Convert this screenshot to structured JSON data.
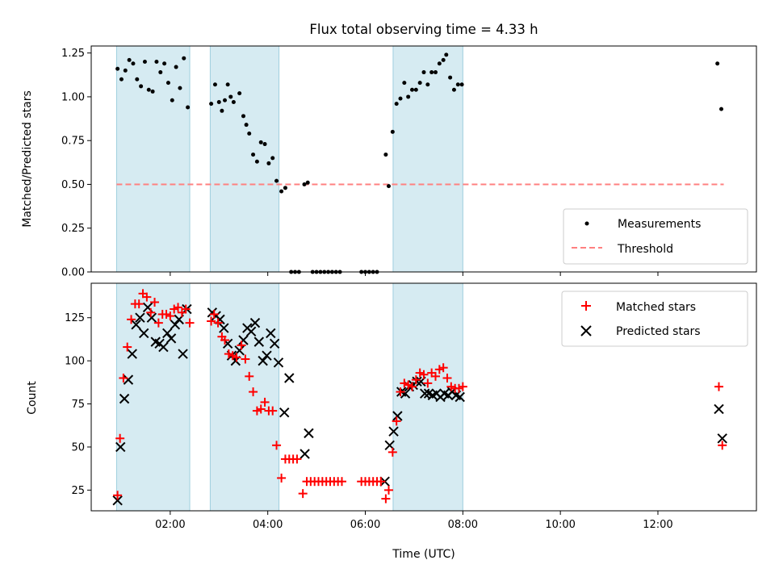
{
  "chart_data": [
    {
      "type": "scatter",
      "title": "Flux total observing time = 4.33 h",
      "xlabel": "",
      "ylabel": "Matched/Predicted stars",
      "xlim": [
        0.38,
        14.02
      ],
      "ylim": [
        0.0,
        1.29
      ],
      "yticks": [
        0.0,
        0.25,
        0.5,
        0.75,
        1.0,
        1.25
      ],
      "ytick_labels": [
        "0.00",
        "0.25",
        "0.50",
        "0.75",
        "1.00",
        "1.25"
      ],
      "xticks": [
        2,
        4,
        6,
        8,
        10,
        12
      ],
      "shaded_intervals": [
        [
          0.9,
          2.4
        ],
        [
          2.82,
          4.23
        ],
        [
          6.57,
          8.0
        ]
      ],
      "threshold": {
        "name": "Threshold",
        "y": 0.5,
        "x_range": [
          0.9,
          13.35
        ],
        "color": "#ff8080"
      },
      "legend": {
        "position": "lower-right",
        "entries": [
          "Measurements",
          "Threshold"
        ]
      },
      "series": [
        {
          "name": "Measurements",
          "marker": "dot",
          "color": "#000000",
          "points": [
            [
              0.92,
              1.16
            ],
            [
              1.0,
              1.1
            ],
            [
              1.08,
              1.15
            ],
            [
              1.16,
              1.21
            ],
            [
              1.24,
              1.19
            ],
            [
              1.32,
              1.1
            ],
            [
              1.4,
              1.06
            ],
            [
              1.48,
              1.2
            ],
            [
              1.56,
              1.04
            ],
            [
              1.64,
              1.03
            ],
            [
              1.72,
              1.2
            ],
            [
              1.8,
              1.14
            ],
            [
              1.88,
              1.19
            ],
            [
              1.96,
              1.08
            ],
            [
              2.04,
              0.98
            ],
            [
              2.12,
              1.17
            ],
            [
              2.2,
              1.05
            ],
            [
              2.28,
              1.22
            ],
            [
              2.36,
              0.94
            ],
            [
              2.84,
              0.96
            ],
            [
              2.92,
              1.07
            ],
            [
              3.0,
              0.97
            ],
            [
              3.06,
              0.92
            ],
            [
              3.12,
              0.98
            ],
            [
              3.18,
              1.07
            ],
            [
              3.24,
              1.0
            ],
            [
              3.3,
              0.97
            ],
            [
              3.42,
              1.02
            ],
            [
              3.5,
              0.89
            ],
            [
              3.56,
              0.84
            ],
            [
              3.62,
              0.79
            ],
            [
              3.7,
              0.67
            ],
            [
              3.78,
              0.63
            ],
            [
              3.86,
              0.74
            ],
            [
              3.94,
              0.73
            ],
            [
              4.02,
              0.62
            ],
            [
              4.1,
              0.65
            ],
            [
              4.18,
              0.52
            ],
            [
              4.28,
              0.46
            ],
            [
              4.36,
              0.48
            ],
            [
              4.48,
              0.0
            ],
            [
              4.56,
              0.0
            ],
            [
              4.64,
              0.0
            ],
            [
              4.75,
              0.5
            ],
            [
              4.82,
              0.51
            ],
            [
              4.92,
              0.0
            ],
            [
              5.0,
              0.0
            ],
            [
              5.08,
              0.0
            ],
            [
              5.16,
              0.0
            ],
            [
              5.24,
              0.0
            ],
            [
              5.32,
              0.0
            ],
            [
              5.4,
              0.0
            ],
            [
              5.48,
              0.0
            ],
            [
              5.92,
              0.0
            ],
            [
              6.0,
              0.0
            ],
            [
              6.08,
              0.0
            ],
            [
              6.16,
              0.0
            ],
            [
              6.24,
              0.0
            ],
            [
              6.42,
              0.67
            ],
            [
              6.48,
              0.49
            ],
            [
              6.56,
              0.8
            ],
            [
              6.64,
              0.96
            ],
            [
              6.72,
              0.99
            ],
            [
              6.8,
              1.08
            ],
            [
              6.88,
              1.0
            ],
            [
              6.96,
              1.04
            ],
            [
              7.04,
              1.04
            ],
            [
              7.12,
              1.08
            ],
            [
              7.2,
              1.14
            ],
            [
              7.28,
              1.07
            ],
            [
              7.36,
              1.14
            ],
            [
              7.44,
              1.14
            ],
            [
              7.52,
              1.19
            ],
            [
              7.6,
              1.21
            ],
            [
              7.66,
              1.24
            ],
            [
              7.74,
              1.11
            ],
            [
              7.82,
              1.04
            ],
            [
              7.9,
              1.07
            ],
            [
              7.98,
              1.07
            ],
            [
              13.22,
              1.19
            ],
            [
              13.3,
              0.93
            ]
          ]
        }
      ]
    },
    {
      "type": "scatter",
      "title": "",
      "xlabel": "Time (UTC)",
      "ylabel": "Count",
      "xlim": [
        0.38,
        14.02
      ],
      "ylim": [
        13.0,
        145.0
      ],
      "yticks": [
        25,
        50,
        75,
        100,
        125
      ],
      "xticks": [
        2,
        4,
        6,
        8,
        10,
        12
      ],
      "xtick_labels": [
        "02:00",
        "04:00",
        "06:00",
        "08:00",
        "10:00",
        "12:00"
      ],
      "shaded_intervals": [
        [
          0.9,
          2.4
        ],
        [
          2.82,
          4.23
        ],
        [
          6.57,
          8.0
        ]
      ],
      "legend": {
        "position": "upper-right",
        "entries": [
          "Matched stars",
          "Predicted stars"
        ]
      },
      "series": [
        {
          "name": "Matched stars",
          "marker": "plus",
          "color": "#ff0000",
          "points": [
            [
              0.92,
              22
            ],
            [
              0.97,
              55
            ],
            [
              1.04,
              90
            ],
            [
              1.12,
              108
            ],
            [
              1.2,
              124
            ],
            [
              1.28,
              133
            ],
            [
              1.36,
              133
            ],
            [
              1.44,
              139
            ],
            [
              1.52,
              137
            ],
            [
              1.6,
              128
            ],
            [
              1.68,
              134
            ],
            [
              1.76,
              122
            ],
            [
              1.84,
              127
            ],
            [
              1.92,
              127
            ],
            [
              2.0,
              126
            ],
            [
              2.08,
              130
            ],
            [
              2.16,
              131
            ],
            [
              2.24,
              128
            ],
            [
              2.32,
              130
            ],
            [
              2.4,
              122
            ],
            [
              2.84,
              123
            ],
            [
              2.9,
              127
            ],
            [
              2.98,
              122
            ],
            [
              3.06,
              114
            ],
            [
              3.12,
              112
            ],
            [
              3.2,
              104
            ],
            [
              3.28,
              103
            ],
            [
              3.36,
              102
            ],
            [
              3.46,
              109
            ],
            [
              3.54,
              101
            ],
            [
              3.62,
              91
            ],
            [
              3.7,
              82
            ],
            [
              3.78,
              71
            ],
            [
              3.86,
              72
            ],
            [
              3.94,
              76
            ],
            [
              4.02,
              71
            ],
            [
              4.1,
              71
            ],
            [
              4.18,
              51
            ],
            [
              4.28,
              32
            ],
            [
              4.36,
              43
            ],
            [
              4.44,
              43
            ],
            [
              4.52,
              43
            ],
            [
              4.6,
              43
            ],
            [
              4.72,
              23
            ],
            [
              4.8,
              30
            ],
            [
              4.88,
              30
            ],
            [
              4.96,
              30
            ],
            [
              5.04,
              30
            ],
            [
              5.12,
              30
            ],
            [
              5.2,
              30
            ],
            [
              5.28,
              30
            ],
            [
              5.36,
              30
            ],
            [
              5.44,
              30
            ],
            [
              5.52,
              30
            ],
            [
              5.92,
              30
            ],
            [
              6.0,
              30
            ],
            [
              6.08,
              30
            ],
            [
              6.16,
              30
            ],
            [
              6.24,
              30
            ],
            [
              6.32,
              30
            ],
            [
              6.42,
              20
            ],
            [
              6.48,
              25
            ],
            [
              6.56,
              47
            ],
            [
              6.64,
              65
            ],
            [
              6.72,
              82
            ],
            [
              6.8,
              87
            ],
            [
              6.88,
              86
            ],
            [
              6.96,
              85
            ],
            [
              7.04,
              89
            ],
            [
              7.12,
              93
            ],
            [
              7.2,
              92
            ],
            [
              7.28,
              87
            ],
            [
              7.36,
              93
            ],
            [
              7.44,
              91
            ],
            [
              7.52,
              95
            ],
            [
              7.6,
              96
            ],
            [
              7.68,
              90
            ],
            [
              7.76,
              85
            ],
            [
              7.84,
              84
            ],
            [
              7.92,
              84
            ],
            [
              8.0,
              85
            ],
            [
              13.25,
              85
            ],
            [
              13.32,
              51
            ]
          ]
        },
        {
          "name": "Predicted stars",
          "marker": "x",
          "color": "#000000",
          "points": [
            [
              0.92,
              19
            ],
            [
              0.98,
              50
            ],
            [
              1.06,
              78
            ],
            [
              1.14,
              89
            ],
            [
              1.22,
              104
            ],
            [
              1.3,
              121
            ],
            [
              1.38,
              125
            ],
            [
              1.46,
              116
            ],
            [
              1.54,
              131
            ],
            [
              1.62,
              125
            ],
            [
              1.7,
              111
            ],
            [
              1.78,
              110
            ],
            [
              1.86,
              108
            ],
            [
              1.94,
              116
            ],
            [
              2.02,
              113
            ],
            [
              2.1,
              121
            ],
            [
              2.18,
              124
            ],
            [
              2.26,
              104
            ],
            [
              2.34,
              130
            ],
            [
              2.86,
              128
            ],
            [
              2.94,
              126
            ],
            [
              3.02,
              124
            ],
            [
              3.1,
              119
            ],
            [
              3.18,
              110
            ],
            [
              3.26,
              103
            ],
            [
              3.34,
              100
            ],
            [
              3.42,
              106
            ],
            [
              3.5,
              112
            ],
            [
              3.58,
              119
            ],
            [
              3.66,
              117
            ],
            [
              3.74,
              122
            ],
            [
              3.82,
              111
            ],
            [
              3.9,
              100
            ],
            [
              3.98,
              103
            ],
            [
              4.06,
              116
            ],
            [
              4.14,
              110
            ],
            [
              4.22,
              99
            ],
            [
              4.34,
              70
            ],
            [
              4.44,
              90
            ],
            [
              4.76,
              46
            ],
            [
              4.84,
              58
            ],
            [
              6.4,
              30
            ],
            [
              6.5,
              51
            ],
            [
              6.58,
              59
            ],
            [
              6.66,
              68
            ],
            [
              6.74,
              82
            ],
            [
              6.82,
              81
            ],
            [
              6.9,
              85
            ],
            [
              6.98,
              86
            ],
            [
              7.06,
              88
            ],
            [
              7.14,
              88
            ],
            [
              7.22,
              81
            ],
            [
              7.3,
              81
            ],
            [
              7.38,
              80
            ],
            [
              7.46,
              81
            ],
            [
              7.54,
              79
            ],
            [
              7.62,
              81
            ],
            [
              7.7,
              80
            ],
            [
              7.78,
              82
            ],
            [
              7.86,
              80
            ],
            [
              7.94,
              79
            ],
            [
              13.25,
              72
            ],
            [
              13.32,
              55
            ]
          ]
        }
      ]
    }
  ]
}
